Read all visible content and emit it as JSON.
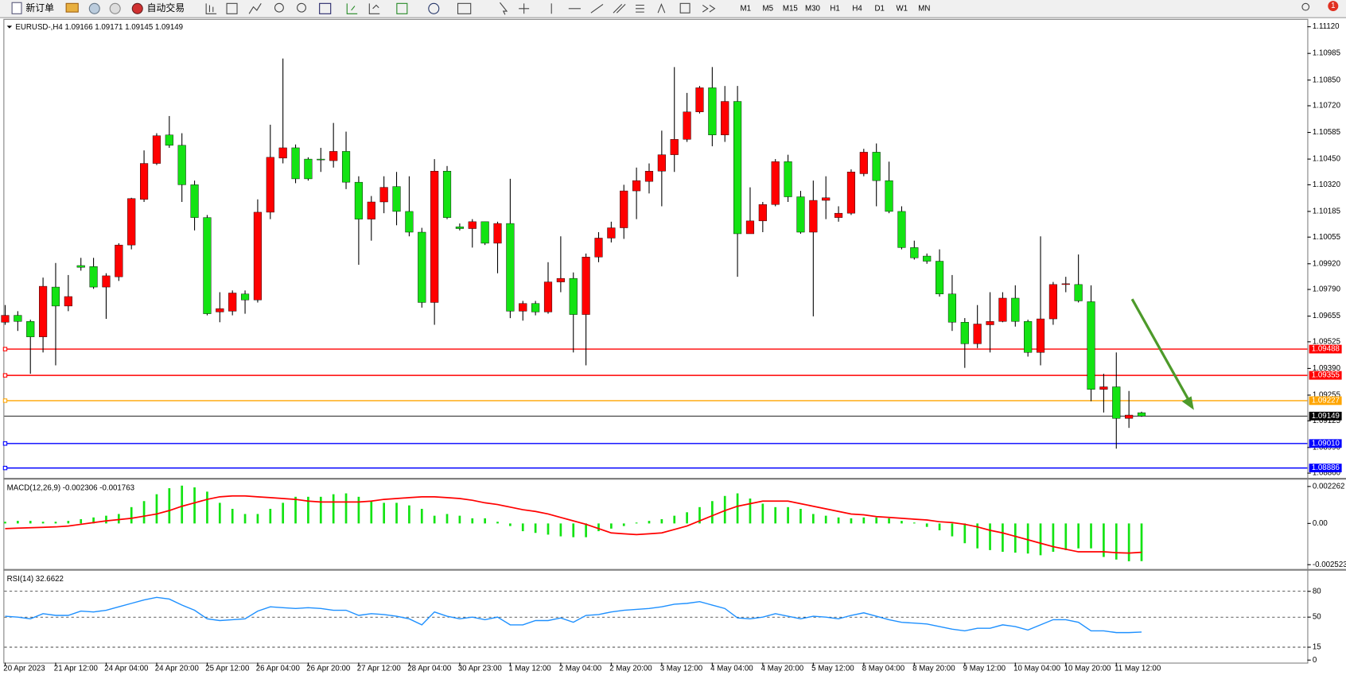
{
  "toolbar": {
    "new_order": "新订单",
    "auto_trading": "自动交易",
    "timeframes": [
      "M1",
      "M5",
      "M15",
      "M30",
      "H1",
      "H4",
      "D1",
      "W1",
      "MN"
    ],
    "badge": "1"
  },
  "chart_data": [
    {
      "type": "candlestick",
      "title": "EURUSD-,H4  1.09166 1.09171 1.09145 1.09149",
      "categories": [
        "20 Apr 2023",
        null,
        null,
        null,
        "21 Apr 12:00",
        null,
        null,
        null,
        "24 Apr 04:00",
        null,
        null,
        null,
        "24 Apr 20:00",
        null,
        null,
        null,
        "25 Apr 12:00",
        null,
        null,
        null,
        "26 Apr 04:00",
        null,
        null,
        null,
        "26 Apr 20:00",
        null,
        null,
        null,
        "27 Apr 12:00",
        null,
        null,
        null,
        "28 Apr 04:00",
        null,
        null,
        null,
        "30 Apr 23:00",
        null,
        null,
        null,
        "1 May 12:00",
        null,
        null,
        null,
        "2 May 04:00",
        null,
        null,
        null,
        "2 May 20:00",
        null,
        null,
        null,
        "3 May 12:00",
        null,
        null,
        null,
        "4 May 04:00",
        null,
        null,
        null,
        "4 May 20:00",
        null,
        null,
        null,
        "5 May 12:00",
        null,
        null,
        null,
        "8 May 04:00",
        null,
        null,
        null,
        "8 May 20:00",
        null,
        null,
        null,
        "9 May 12:00",
        null,
        null,
        null,
        "10 May 04:00",
        null,
        null,
        null,
        "10 May 20:00",
        null,
        null,
        null,
        "11 May 12:00",
        null,
        null
      ],
      "open": [
        1.09624,
        1.09659,
        1.09628,
        1.0955,
        1.09802,
        1.09706,
        1.09911,
        1.09906,
        1.09802,
        1.09854,
        1.10015,
        1.10246,
        1.10428,
        1.10572,
        1.1052,
        1.1032,
        1.10154,
        1.09676,
        1.0968,
        1.09767,
        1.09737,
        1.10181,
        1.10455,
        1.10507,
        1.1045,
        1.1045,
        1.10442,
        1.10489,
        1.10333,
        1.10146,
        1.10233,
        1.10311,
        1.10185,
        1.1008,
        1.09724,
        1.10389,
        1.10107,
        1.10098,
        1.10133,
        1.10024,
        1.10124,
        1.0968,
        1.09719,
        1.09676,
        1.09828,
        1.09846,
        1.09663,
        1.09954,
        1.1005,
        1.10102,
        1.10289,
        1.10337,
        1.10389,
        1.10472,
        1.1055,
        1.10689,
        1.10811,
        1.10572,
        1.10742,
        1.10072,
        1.10137,
        1.1022,
        1.10437,
        1.10259,
        1.1008,
        1.10241,
        1.10154,
        1.10176,
        1.10376,
        1.10485,
        1.10341,
        1.10185,
        1.10002,
        1.09959,
        1.09933,
        1.09767,
        1.09624,
        1.09515,
        1.09611,
        1.09628,
        1.09746,
        1.09628,
        1.09471,
        1.09641,
        1.09815,
        1.09815,
        1.09728,
        1.09284,
        1.09297,
        1.09137,
        1.09166
      ],
      "high": [
        1.09711,
        1.0968,
        1.09637,
        1.0985,
        1.09924,
        1.09863,
        1.0995,
        1.0995,
        1.09872,
        1.10024,
        1.10254,
        1.10494,
        1.10581,
        1.10668,
        1.10581,
        1.10341,
        1.10167,
        1.09776,
        1.09785,
        1.09785,
        1.10246,
        1.10624,
        1.10959,
        1.10524,
        1.10459,
        1.10507,
        1.10633,
        1.10589,
        1.10363,
        1.10263,
        1.10363,
        1.10385,
        1.10363,
        1.10102,
        1.1045,
        1.10415,
        1.10124,
        1.10146,
        1.10133,
        1.10133,
        1.1035,
        1.09732,
        1.09732,
        1.09928,
        1.10059,
        1.09876,
        1.09972,
        1.1008,
        1.10133,
        1.1032,
        1.10407,
        1.10428,
        1.10594,
        1.10916,
        1.10785,
        1.1082,
        1.10916,
        1.1082,
        1.1082,
        1.10307,
        1.10233,
        1.1045,
        1.10472,
        1.10289,
        1.10341,
        1.10363,
        1.10211,
        1.10398,
        1.10502,
        1.10529,
        1.10437,
        1.10211,
        1.10037,
        1.09972,
        1.09993,
        1.09863,
        1.09645,
        1.09711,
        1.09776,
        1.09776,
        1.09811,
        1.09637,
        1.10059,
        1.09828,
        1.09854,
        1.09967,
        1.09811,
        1.09363,
        1.09471,
        1.09276,
        1.09171
      ],
      "low": [
        1.09611,
        1.0958,
        1.09363,
        1.09471,
        1.09406,
        1.0968,
        1.09885,
        1.09793,
        1.09641,
        1.09833,
        1.09993,
        1.10233,
        1.1042,
        1.10507,
        1.10233,
        1.10089,
        1.09659,
        1.09624,
        1.09659,
        1.09667,
        1.09724,
        1.10146,
        1.10428,
        1.10328,
        1.10341,
        1.10385,
        1.10407,
        1.10298,
        1.09915,
        1.10037,
        1.10176,
        1.10115,
        1.10059,
        1.09698,
        1.09611,
        1.10146,
        1.10089,
        1.10002,
        1.10015,
        1.09872,
        1.09645,
        1.09632,
        1.09659,
        1.09667,
        1.09776,
        1.09471,
        1.09406,
        1.09928,
        1.10028,
        1.10046,
        1.10146,
        1.10276,
        1.10211,
        1.10385,
        1.10537,
        1.10681,
        1.10515,
        1.10537,
        1.09854,
        1.10072,
        1.1008,
        1.10211,
        1.10233,
        1.10072,
        1.09654,
        1.10146,
        1.10133,
        1.10167,
        1.10363,
        1.10211,
        1.10176,
        1.09993,
        1.09941,
        1.0992,
        1.09754,
        1.0958,
        1.09393,
        1.09493,
        1.09471,
        1.09624,
        1.09602,
        1.0945,
        1.09406,
        1.09611,
        1.09776,
        1.09724,
        1.09224,
        1.09167,
        1.08984,
        1.09089,
        1.09145
      ],
      "close": [
        1.09659,
        1.09628,
        1.0955,
        1.09806,
        1.09706,
        1.09754,
        1.09902,
        1.09802,
        1.09859,
        1.10015,
        1.1025,
        1.10428,
        1.10568,
        1.1052,
        1.1032,
        1.10154,
        1.09667,
        1.09693,
        1.09772,
        1.09737,
        1.10181,
        1.10459,
        1.10507,
        1.1035,
        1.1035,
        1.10446,
        1.10489,
        1.10333,
        1.10146,
        1.10233,
        1.10307,
        1.10185,
        1.1008,
        1.09724,
        1.10389,
        1.10154,
        1.10098,
        1.10133,
        1.10024,
        1.10124,
        1.0968,
        1.09719,
        1.09676,
        1.09828,
        1.09846,
        1.09663,
        1.09954,
        1.1005,
        1.10102,
        1.10289,
        1.10341,
        1.10389,
        1.10472,
        1.1055,
        1.10689,
        1.10811,
        1.10572,
        1.10742,
        1.10072,
        1.10137,
        1.1022,
        1.10437,
        1.10259,
        1.1008,
        1.10241,
        1.10254,
        1.10176,
        1.10385,
        1.10485,
        1.10341,
        1.10185,
        1.10002,
        1.0995,
        1.09933,
        1.09767,
        1.09624,
        1.09515,
        1.09615,
        1.09628,
        1.09746,
        1.09628,
        1.09471,
        1.09641,
        1.09815,
        1.09819,
        1.09732,
        1.09284,
        1.09297,
        1.09137,
        1.09154,
        1.09149
      ],
      "up_color": "#ff0000",
      "down_color": "#13e313",
      "wick_color": "#000000",
      "ylim": [
        1.08836,
        1.11151
      ],
      "yticks": [
        {
          "value": 1.1112,
          "label": "1.11120"
        },
        1.10985,
        {
          "value": 1.1085,
          "label": "1.10850"
        },
        {
          "value": 1.1072,
          "label": "1.10720"
        },
        1.10585,
        {
          "value": 1.1045,
          "label": "1.10450"
        },
        {
          "value": 1.1032,
          "label": "1.10320"
        },
        1.10185,
        1.10055,
        {
          "value": 1.0992,
          "label": "1.09920"
        },
        {
          "value": 1.0979,
          "label": "1.09790"
        },
        1.09655,
        1.09525,
        {
          "value": 1.0939,
          "label": "1.09390"
        },
        1.09255,
        1.09125,
        {
          "value": 1.0899,
          "label": "1.08990"
        },
        {
          "value": 1.0886,
          "label": "1.08860"
        }
      ],
      "hlines": [
        {
          "value": 1.09488,
          "color": "#ff0000"
        },
        {
          "value": 1.09355,
          "color": "#ff0000"
        },
        {
          "value": 1.09227,
          "color": "#ffa500"
        },
        {
          "value": 1.0901,
          "label": "1.09010",
          "color": "#0000ff"
        },
        {
          "value": 1.08886,
          "color": "#0000ff"
        }
      ],
      "current": {
        "value": 1.09149,
        "color": "#000000"
      }
    },
    {
      "type": "macd",
      "title": "MACD(12,26,9) -0.002306 -0.001763",
      "histogram": [
        0.000105,
        0.000158,
        0.000158,
        0.000105,
        0.000105,
        0.000158,
        0.000263,
        0.000368,
        0.000473,
        0.000579,
        0.000999,
        0.001368,
        0.001788,
        0.002157,
        0.002314,
        0.002209,
        0.001946,
        0.001262,
        0.000894,
        0.000579,
        0.000579,
        0.000894,
        0.001262,
        0.001631,
        0.001631,
        0.001631,
        0.001788,
        0.001841,
        0.001631,
        0.001368,
        0.001262,
        0.001262,
        0.001105,
        0.000894,
        0.000473,
        0.000579,
        0.000473,
        0.000316,
        0.000316,
        0.000105,
        -0.000158,
        -0.000473,
        -0.000579,
        -0.000684,
        -0.000789,
        -0.000842,
        -0.000842,
        -0.000473,
        -0.000316,
        -0.000158,
        5.3e-05,
        0.000158,
        0.000263,
        0.000473,
        0.000684,
        0.000999,
        0.001368,
        0.001683,
        0.001841,
        0.001525,
        0.00121,
        0.000999,
        0.000999,
        0.000894,
        0.000579,
        0.000473,
        0.000368,
        0.000316,
        0.000368,
        0.000368,
        0.000316,
        0.000158,
        5.3e-05,
        -0.00021,
        -0.000421,
        -0.000789,
        -0.00121,
        -0.001525,
        -0.001631,
        -0.001736,
        -0.001788,
        -0.001841,
        -0.001946,
        -0.001736,
        -0.001631,
        -0.001525,
        -0.001525,
        -0.002051,
        -0.002209,
        -0.002314,
        -0.002306
      ],
      "signal": [
        -0.000316,
        -0.000289,
        -0.000263,
        -0.000237,
        -0.00021,
        -0.000158,
        -5.3e-05,
        5.3e-05,
        0.000158,
        0.000237,
        0.000316,
        0.000447,
        0.000579,
        0.000789,
        0.001052,
        0.001262,
        0.001473,
        0.001631,
        0.001683,
        0.001683,
        0.001631,
        0.001578,
        0.001525,
        0.001473,
        0.001368,
        0.001315,
        0.001315,
        0.001315,
        0.001315,
        0.001368,
        0.001473,
        0.001525,
        0.001578,
        0.001631,
        0.001631,
        0.001578,
        0.001525,
        0.00142,
        0.001262,
        0.001157,
        0.000999,
        0.000842,
        0.000736,
        0.000579,
        0.000368,
        0.000158,
        -5.3e-05,
        -0.000316,
        -0.000579,
        -0.000631,
        -0.000684,
        -0.000631,
        -0.000579,
        -0.000368,
        -0.000158,
        0.000158,
        0.000473,
        0.000789,
        0.001052,
        0.00121,
        0.001368,
        0.001368,
        0.001368,
        0.00121,
        0.001052,
        0.000894,
        0.000736,
        0.000579,
        0.000526,
        0.000421,
        0.000368,
        0.000316,
        0.000263,
        0.00021,
        0.000105,
        5.3e-05,
        -5.3e-05,
        -0.00021,
        -0.000421,
        -0.000579,
        -0.000789,
        -0.000999,
        -0.00121,
        -0.00142,
        -0.001578,
        -0.001736,
        -0.001736,
        -0.001736,
        -0.001788,
        -0.001815,
        -0.001763
      ],
      "histogram_color": "#13e313",
      "signal_color": "#ff0000",
      "ylim": [
        -0.002786,
        0.002683
      ],
      "yticks": [
        0.002262,
        {
          "value": 0,
          "label": "0.00"
        },
        -0.002523
      ]
    },
    {
      "type": "line",
      "title": "RSI(14) 32.6622",
      "values": [
        51,
        50,
        48,
        54,
        52,
        52,
        57,
        56,
        58,
        62,
        66,
        70,
        73,
        71,
        64,
        58,
        48,
        46,
        47,
        48,
        57,
        62,
        61,
        60,
        61,
        60,
        58,
        58,
        52,
        54,
        53,
        51,
        48,
        41,
        56,
        51,
        48,
        50,
        47,
        50,
        41,
        41,
        46,
        46,
        49,
        44,
        52,
        53,
        56,
        58,
        59,
        60,
        62,
        65,
        66,
        68,
        64,
        60,
        49,
        48,
        50,
        54,
        51,
        48,
        51,
        50,
        48,
        52,
        55,
        51,
        47,
        44,
        43,
        42,
        39,
        36,
        34,
        37,
        37,
        41,
        39,
        35,
        41,
        47,
        47,
        44,
        34,
        34,
        32,
        32,
        32.6622
      ],
      "color": "#1e90ff",
      "ylim": [
        -2,
        104
      ],
      "yticks": [
        80,
        50,
        15,
        0
      ],
      "levels": [
        80,
        50,
        15
      ]
    }
  ]
}
